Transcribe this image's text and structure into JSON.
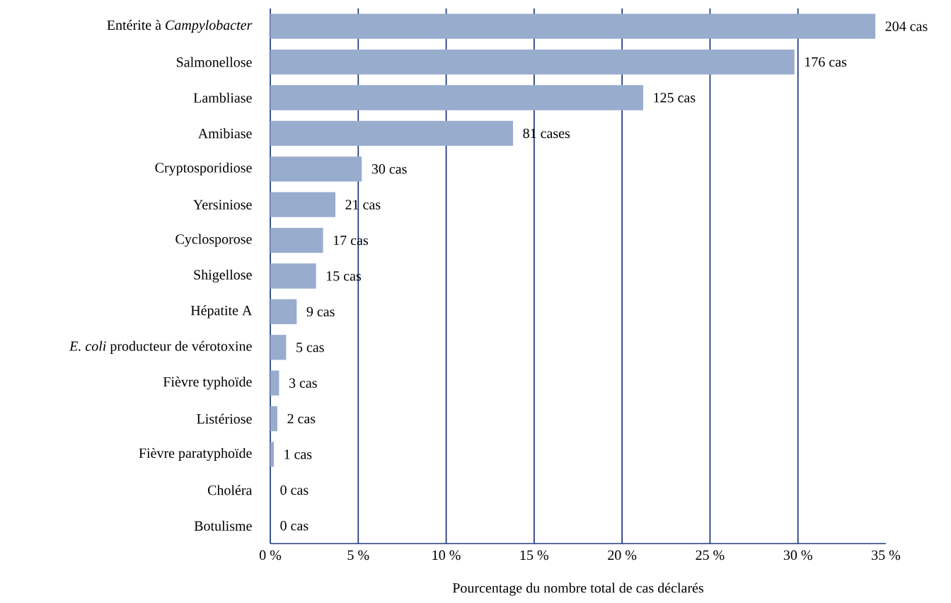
{
  "chart_data": {
    "type": "bar",
    "orientation": "horizontal",
    "categories": [
      "Entérite à *Campylobacter*",
      "Salmonellose",
      "Lambliase",
      "Amibiase",
      "Cryptosporidiose",
      "Yersiniose",
      "Cyclosporose",
      "Shigellose",
      "Hépatite A",
      "*E. coli* producteur de vérotoxine",
      "Fièvre typhoïde",
      "Listériose",
      "Fièvre paratyphoïde",
      "Choléra",
      "Botulisme"
    ],
    "values": [
      34.4,
      29.8,
      21.2,
      13.8,
      5.2,
      3.7,
      3.0,
      2.6,
      1.5,
      0.9,
      0.5,
      0.4,
      0.2,
      0,
      0
    ],
    "annotations": [
      {
        "text": "204 cas",
        "x": 34.4,
        "y": "Entérite à *Campylobacter*"
      },
      {
        "text": "176 cas",
        "x": 29.8,
        "y": "Salmonellose"
      },
      {
        "text": "125 cas",
        "x": 21.2,
        "y": "Lambliase"
      },
      {
        "text": "81 cases",
        "x": 13.8,
        "y": "Amibiase"
      },
      {
        "text": "30 cas",
        "x": 5.2,
        "y": "Cryptosporidiose"
      },
      {
        "text": "21 cas",
        "x": 3.7,
        "y": "Yersiniose"
      },
      {
        "text": "17 cas",
        "x": 3.0,
        "y": "Cyclosporose"
      },
      {
        "text": "15 cas",
        "x": 2.6,
        "y": "Shigellose"
      },
      {
        "text": "9 cas",
        "x": 1.5,
        "y": "Hépatite A"
      },
      {
        "text": "5 cas",
        "x": 0.9,
        "y": "*E. coli* producteur de vérotoxine"
      },
      {
        "text": "3 cas",
        "x": 0.5,
        "y": "Fièvre typhoïde"
      },
      {
        "text": "2 cas",
        "x": 0.4,
        "y": "Listériose"
      },
      {
        "text": "1 cas",
        "x": 0.2,
        "y": "Fièvre paratyphoïde"
      },
      {
        "text": "0 cas",
        "x": 0,
        "y": "Choléra"
      },
      {
        "text": "0 cas",
        "x": 0,
        "y": "Botulisme"
      }
    ],
    "color": "#98acce",
    "xlim": [
      0,
      35
    ],
    "xticks": [
      {
        "value": 0,
        "label": "0 %"
      },
      {
        "value": 5,
        "label": "5 %"
      },
      {
        "value": 10,
        "label": "10 %"
      },
      {
        "value": 15,
        "label": "15 %"
      },
      {
        "value": 20,
        "label": "20 %"
      },
      {
        "value": 25,
        "label": "25 %"
      },
      {
        "value": 30,
        "label": "30 %"
      },
      {
        "value": 35,
        "label": "35 %"
      }
    ],
    "xlabel": "Pourcentage du nombre total de cas déclarés",
    "grid": "x"
  }
}
